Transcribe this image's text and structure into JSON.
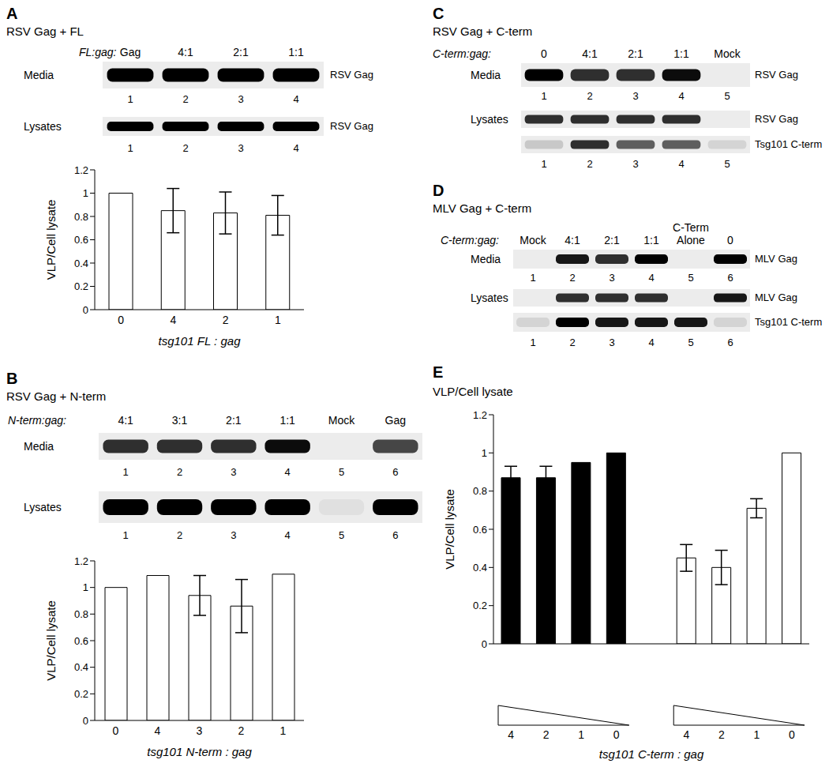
{
  "chart_data": [
    {
      "type": "bar",
      "categories": [
        "0",
        "4",
        "2",
        "1"
      ],
      "values": [
        1,
        0.85,
        0.83,
        0.81
      ],
      "errors": [
        null,
        0.19,
        0.18,
        0.17
      ],
      "color": "#ffffff",
      "ylim": [
        0,
        1.2
      ],
      "yticks": [
        0,
        0.2,
        0.4,
        0.6,
        0.8,
        1,
        1.2
      ],
      "xlabel": "tsg101 FL : gag",
      "ylabel": "VLP/Cell lysate"
    },
    {
      "type": "bar",
      "categories": [
        "0",
        "4",
        "3",
        "2",
        "1"
      ],
      "values": [
        1,
        1.09,
        0.94,
        0.86,
        1.1
      ],
      "errors": [
        null,
        null,
        0.15,
        0.2,
        null
      ],
      "color": "#ffffff",
      "ylim": [
        0,
        1.2
      ],
      "yticks": [
        0,
        0.2,
        0.4,
        0.6,
        0.8,
        1,
        1.2
      ],
      "xlabel": "tsg101 N-term : gag",
      "ylabel": "VLP/Cell lysate"
    },
    {
      "type": "bar",
      "title": "VLP/Cell lysate",
      "categories": [
        "4",
        "2",
        "1",
        "0",
        null,
        "4",
        "2",
        "1",
        "0"
      ],
      "series": [
        {
          "color": "#000000",
          "values": [
            0.87,
            0.87,
            0.95,
            1,
            null,
            null,
            null,
            null,
            null
          ],
          "errors": [
            0.06,
            0.06,
            null,
            null,
            null,
            null,
            null,
            null,
            null
          ]
        },
        {
          "color": "#ffffff",
          "values": [
            null,
            null,
            null,
            null,
            null,
            0.45,
            0.4,
            0.71,
            1
          ],
          "errors": [
            null,
            null,
            null,
            null,
            null,
            0.07,
            0.09,
            0.05,
            null
          ]
        }
      ],
      "ylim": [
        0,
        1.2
      ],
      "yticks": [
        0,
        0.2,
        0.4,
        0.6,
        0.8,
        1,
        1.2
      ],
      "xlabel": "tsg101 C-term : gag",
      "ylabel": "VLP/Cell lysate"
    }
  ],
  "panels": [
    {
      "letter": "A",
      "title": "RSV Gag + FL",
      "lane_header": "FL:gag:",
      "lanes": [
        "Gag",
        "4:1",
        "2:1",
        "1:1"
      ],
      "rows": [
        {
          "name": "Media",
          "target": "RSV Gag",
          "bands": [
            1,
            1,
            1,
            1
          ],
          "lane_numbers": [
            "1",
            "2",
            "3",
            "4"
          ]
        },
        {
          "name": "Lysates",
          "target": "RSV Gag",
          "bands": [
            1,
            1,
            1,
            1
          ],
          "lane_numbers": [
            "1",
            "2",
            "3",
            "4"
          ]
        }
      ]
    },
    {
      "letter": "B",
      "title": "RSV Gag + N-term",
      "lane_header": "N-term:gag:",
      "lanes": [
        "4:1",
        "3:1",
        "2:1",
        "1:1",
        "Mock",
        "Gag"
      ],
      "rows": [
        {
          "name": "Media",
          "bands": [
            0.8,
            0.8,
            0.8,
            0.95,
            0,
            0.7
          ],
          "lane_numbers": [
            "1",
            "2",
            "3",
            "4",
            "5",
            "6"
          ]
        },
        {
          "name": "Lysates",
          "bands": [
            1,
            1,
            1,
            1,
            0.05,
            1
          ],
          "lane_numbers": [
            "1",
            "2",
            "3",
            "4",
            "5",
            "6"
          ]
        }
      ]
    },
    {
      "letter": "C",
      "title": "RSV Gag + C-term",
      "lane_header": "C-term:gag:",
      "lanes": [
        "0",
        "4:1",
        "2:1",
        "1:1",
        "Mock"
      ],
      "rows": [
        {
          "name": "Media",
          "target": "RSV Gag",
          "bands": [
            1,
            0.8,
            0.8,
            0.95,
            0
          ],
          "lane_numbers": [
            "1",
            "2",
            "3",
            "4",
            "5"
          ]
        },
        {
          "name": "Lysates",
          "target": "RSV Gag",
          "bands": [
            0.8,
            0.8,
            0.8,
            0.8,
            0
          ]
        },
        {
          "target": "Tsg101 C-term",
          "bands": [
            0.15,
            0.8,
            0.6,
            0.6,
            0.1
          ],
          "lane_numbers": [
            "1",
            "2",
            "3",
            "4",
            "5"
          ]
        }
      ]
    },
    {
      "letter": "D",
      "title": "MLV Gag + C-term",
      "lane_header": "C-term:gag:",
      "lanes": [
        "Mock",
        "4:1",
        "2:1",
        "1:1",
        [
          "C-Term",
          "Alone"
        ],
        "0"
      ],
      "rows": [
        {
          "name": "Media",
          "target": "MLV Gag",
          "bands": [
            0,
            0.9,
            0.8,
            1,
            0,
            1
          ],
          "lane_numbers": [
            "1",
            "2",
            "3",
            "4",
            "5",
            "6"
          ]
        },
        {
          "name": "Lysates",
          "target": "MLV Gag",
          "bands": [
            0,
            0.8,
            0.8,
            0.8,
            0,
            0.9
          ]
        },
        {
          "target": "Tsg101 C-term",
          "bands": [
            0.1,
            1,
            0.9,
            0.9,
            0.9,
            0.1
          ],
          "lane_numbers": [
            "1",
            "2",
            "3",
            "4",
            "5",
            "6"
          ]
        }
      ]
    },
    {
      "letter": "E"
    }
  ]
}
